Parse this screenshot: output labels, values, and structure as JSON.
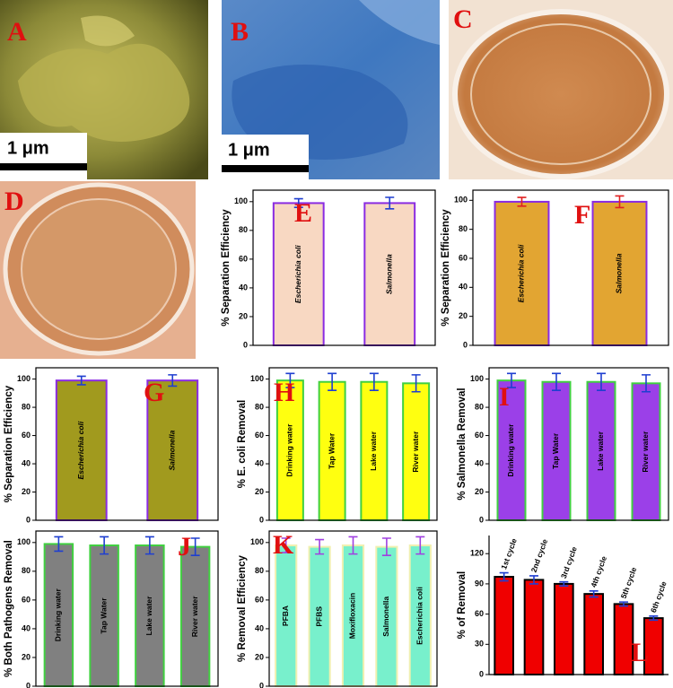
{
  "images": [
    {
      "label": "A",
      "scale_bar": "1 μm"
    },
    {
      "label": "B",
      "scale_bar": "1 μm"
    },
    {
      "label": "C"
    },
    {
      "label": "D"
    }
  ],
  "chart_data": [
    {
      "type": "bar",
      "label": "E",
      "ylabel": "% Separation Efficiency",
      "categories": [
        "Escherichia coli",
        "Salmonella"
      ],
      "values": [
        99,
        99
      ],
      "errors": [
        3,
        4
      ],
      "color": "#f8d8c2",
      "edgecolor": "#8a2be2",
      "errorcolor": "#1f3fd0",
      "ylim": [
        0,
        108
      ],
      "yticks": [
        0,
        20,
        40,
        60,
        80,
        100
      ],
      "label_position": "inside",
      "label_italic": true,
      "frame": true
    },
    {
      "type": "bar",
      "label": "F",
      "ylabel": "% Separation Efficiency",
      "categories": [
        "Escherichia coli",
        "Salmonella"
      ],
      "values": [
        99,
        99
      ],
      "errors": [
        3,
        4
      ],
      "color": "#e2a532",
      "edgecolor": "#8a2be2",
      "errorcolor": "#e02020",
      "ylim": [
        0,
        107
      ],
      "yticks": [
        0,
        20,
        40,
        60,
        80,
        100
      ],
      "label_position": "inside",
      "label_italic": true,
      "frame": true
    },
    {
      "type": "bar",
      "label": "G",
      "ylabel": "% Separation Efficiency",
      "categories": [
        "Escherichia coli",
        "Salmonella"
      ],
      "values": [
        99,
        99
      ],
      "errors": [
        3,
        4
      ],
      "color": "#a19a1e",
      "edgecolor": "#8a2be2",
      "errorcolor": "#1f3fd0",
      "ylim": [
        0,
        108
      ],
      "yticks": [
        0,
        20,
        40,
        60,
        80,
        100
      ],
      "label_position": "inside",
      "label_italic": true,
      "frame": true
    },
    {
      "type": "bar",
      "label": "H",
      "ylabel": "% E. coli Removal",
      "categories": [
        "Drinking water",
        "Tap Water",
        "Lake water",
        "River water"
      ],
      "values": [
        99,
        98,
        98,
        97
      ],
      "errors": [
        5,
        6,
        6,
        6
      ],
      "color": "#ffff10",
      "edgecolor": "#40d040",
      "errorcolor": "#1f3fd0",
      "ylim": [
        0,
        108
      ],
      "yticks": [
        0,
        20,
        40,
        60,
        80,
        100
      ],
      "label_position": "inside",
      "label_italic": false,
      "frame": true
    },
    {
      "type": "bar",
      "label": "I",
      "ylabel": "% Salmonella Removal",
      "categories": [
        "Drinking water",
        "Tap Water",
        "Lake water",
        "River water"
      ],
      "values": [
        99,
        98,
        98,
        97
      ],
      "errors": [
        5,
        6,
        6,
        6
      ],
      "color": "#9b40e8",
      "edgecolor": "#40d040",
      "errorcolor": "#1f3fd0",
      "ylim": [
        0,
        108
      ],
      "yticks": [
        0,
        20,
        40,
        60,
        80,
        100
      ],
      "label_position": "inside",
      "label_italic": false,
      "frame": true
    },
    {
      "type": "bar",
      "label": "J",
      "ylabel": "% Both Pathogens Removal",
      "categories": [
        "Drinking water",
        "Tap Water",
        "Lake water",
        "River water"
      ],
      "values": [
        99,
        98,
        98,
        97
      ],
      "errors": [
        5,
        6,
        6,
        6
      ],
      "color": "#808080",
      "edgecolor": "#40d040",
      "errorcolor": "#1f3fd0",
      "ylim": [
        0,
        108
      ],
      "yticks": [
        0,
        20,
        40,
        60,
        80,
        100
      ],
      "label_position": "inside",
      "label_italic": false,
      "frame": true
    },
    {
      "type": "bar",
      "label": "K",
      "ylabel": "% Removal Efficiency",
      "categories": [
        "PFBA",
        "PFBS",
        "Moxifloxacin",
        "Salmonella",
        "Escherichia coli"
      ],
      "values": [
        98,
        97,
        98,
        97,
        98
      ],
      "errors": [
        5,
        5,
        6,
        6,
        6
      ],
      "color": "#78f0cc",
      "edgecolor": "#f0f0b0",
      "errorcolor": "#a040e0",
      "ylim": [
        0,
        108
      ],
      "yticks": [
        0,
        20,
        40,
        60,
        80,
        100
      ],
      "label_position": "inside",
      "label_italic": false,
      "frame": true
    },
    {
      "type": "bar",
      "label": "L",
      "ylabel": "% of Removal",
      "categories": [
        "1st cycle",
        "2nd cycle",
        "3rd cycle",
        "4th cycle",
        "5th cycle",
        "6th cycle"
      ],
      "values": [
        97,
        94,
        90,
        80,
        70,
        56
      ],
      "errors": [
        4,
        4,
        2,
        3,
        2,
        2
      ],
      "color": "#f00000",
      "edgecolor": "#000000",
      "errorcolor": "#1f3fd0",
      "ylim": [
        0,
        138
      ],
      "yticks": [
        0,
        30,
        60,
        90,
        120
      ],
      "label_position": "above",
      "label_italic": false,
      "frame": false
    }
  ]
}
